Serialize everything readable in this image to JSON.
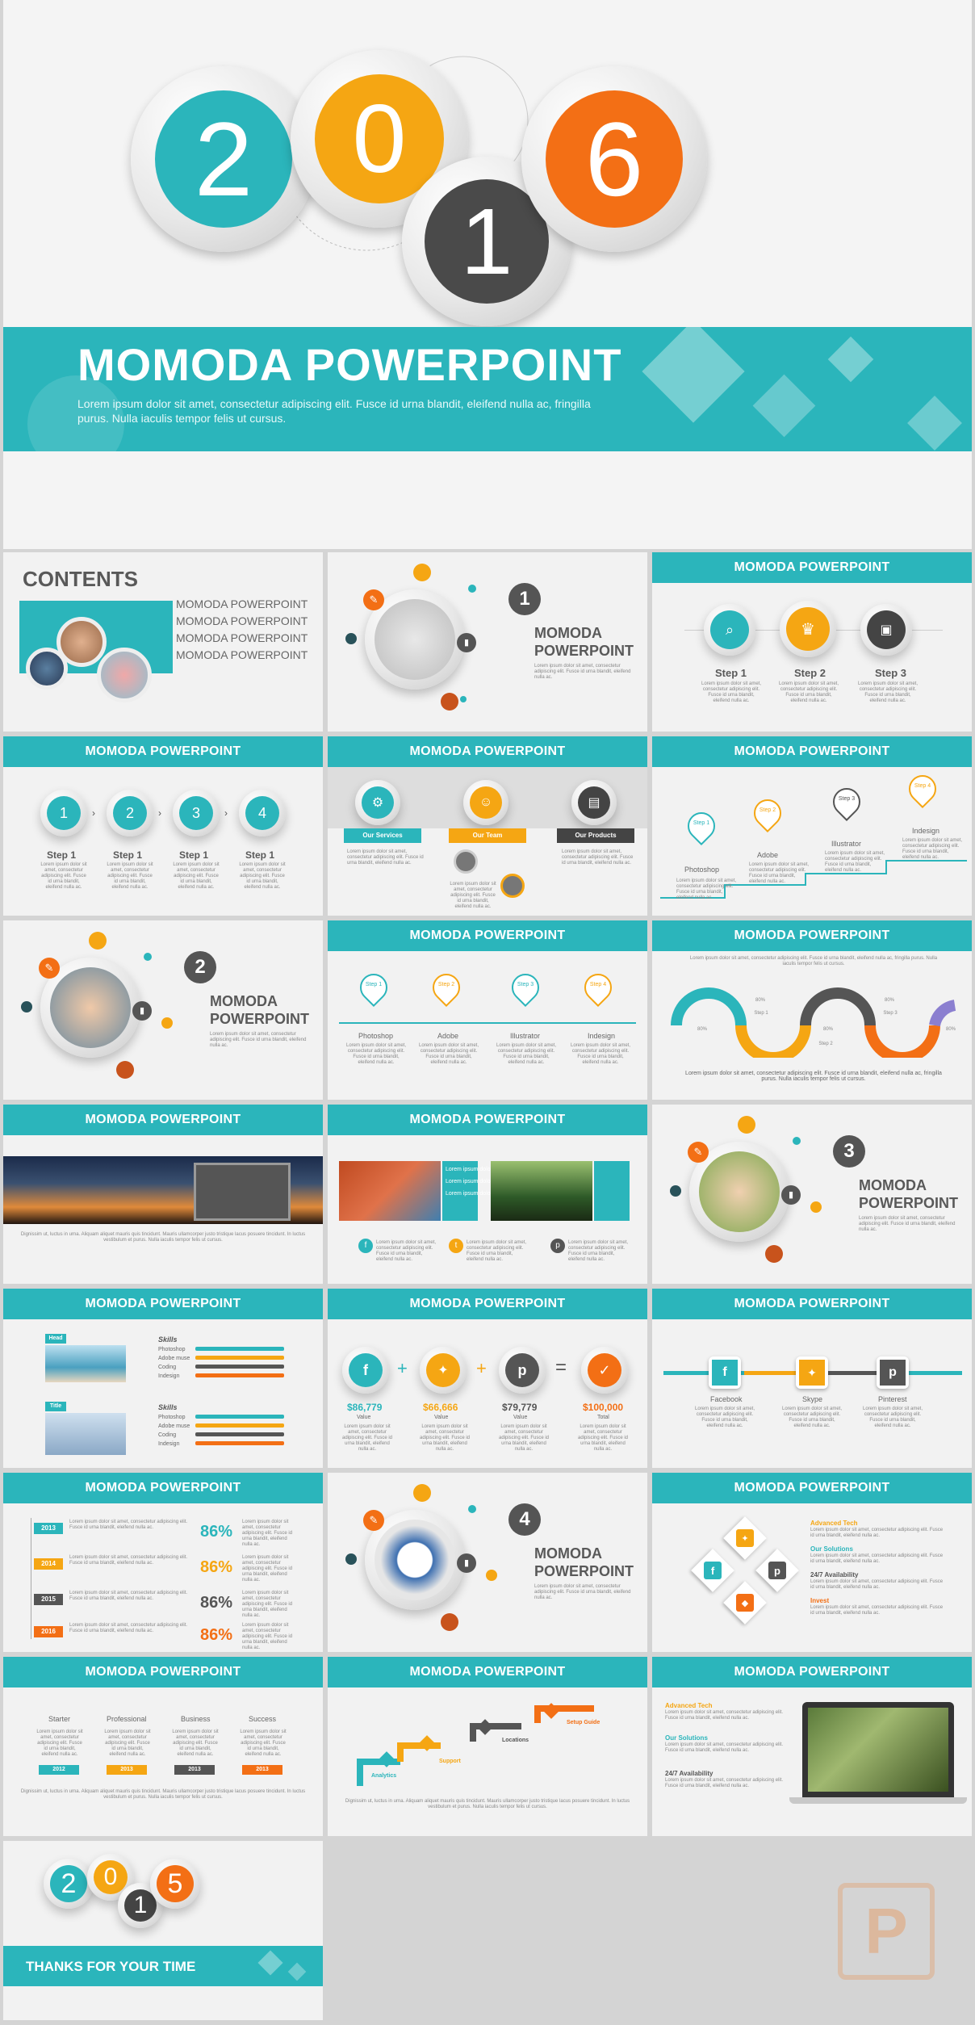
{
  "hero": {
    "d1": "2",
    "d2": "0",
    "d3": "1",
    "d4": "6",
    "title": "MOMODA POWERPOINT",
    "body": "Lorem ipsum dolor sit amet, consectetur adipiscing elit. Fusce id urna blandit, eleifend nulla ac, fringilla purus. Nulla iaculis tempor felis ut cursus."
  },
  "header": "MOMODA POWERPOINT",
  "contents": {
    "title": "CONTENTS",
    "items": [
      "MOMODA POWERPOINT",
      "MOMODA POWERPOINT",
      "MOMODA POWERPOINT",
      "MOMODA POWERPOINT"
    ]
  },
  "sections": [
    {
      "num": "1",
      "l1": "MOMODA",
      "l2": "POWERPOINT"
    },
    {
      "num": "2",
      "l1": "MOMODA",
      "l2": "POWERPOINT"
    },
    {
      "num": "3",
      "l1": "MOMODA",
      "l2": "POWERPOINT"
    },
    {
      "num": "4",
      "l1": "MOMODA",
      "l2": "POWERPOINT"
    }
  ],
  "steps3": [
    "Step 1",
    "Step 2",
    "Step 3"
  ],
  "steps4": {
    "nums": [
      "1",
      "2",
      "3",
      "4"
    ],
    "label": "Step 1"
  },
  "services": [
    "Our Services",
    "Our Team",
    "Our Products"
  ],
  "pins": {
    "steps": [
      "Step 1",
      "Step 2",
      "Step 3",
      "Step 4"
    ],
    "labels": [
      "Photoshop",
      "Adobe",
      "Illustrator",
      "Indesign"
    ],
    "labels2": [
      "Photoshop",
      "Adobe",
      "Illustrator",
      "Indesign"
    ]
  },
  "wave": {
    "text": "Lorem ipsum dolor sit amet, consectetur adipiscing elit. Fusce id urna blandit, eleifend nulla ac, fringilla purus. Nulla iaculis tempor felis ut cursus.",
    "steps": [
      "Step 1",
      "Step 2",
      "Step 3",
      "Step 4"
    ],
    "pct": "80%"
  },
  "photo_caption": "Dignissim ut, luctus in urna. Aliquam aliquet mauris quis tincidunt. Mauris ullamcorper justo tristique lacus posuere tincidunt. In luctus vestibulum et purus. Nulla iaculis tempor felis ut cursus.",
  "bridge": {
    "bullets": [
      "Lorem ipsum dolor sit",
      "Lorem ipsum dolor sit",
      "Lorem ipsum dolor sit"
    ]
  },
  "skills": {
    "tags": [
      "Head",
      "Title"
    ],
    "title": "Skills",
    "rows": [
      "Photoshop",
      "Adobe muse",
      "Coding",
      "Indesign"
    ]
  },
  "eq": {
    "values": [
      "$86,779",
      "$66,666",
      "$79,779",
      "$100,000"
    ],
    "labels": [
      "Value",
      "Value",
      "Value",
      "Total"
    ],
    "icons": [
      "Facebook",
      "Skype",
      "Pinterest",
      "Success"
    ]
  },
  "social": {
    "names": [
      "Facebook",
      "Skype",
      "Pinterest"
    ]
  },
  "years": {
    "list": [
      "2013",
      "2014",
      "2015",
      "2016"
    ],
    "pcts": [
      "86%",
      "86%",
      "86%",
      "86%"
    ]
  },
  "diamond": {
    "heads": [
      "Advanced Tech",
      "Our Solutions",
      "24/7 Availability",
      "Invest"
    ]
  },
  "pricing": {
    "plans": [
      "Starter",
      "Professional",
      "Business",
      "Success"
    ],
    "years": [
      "2012",
      "2013",
      "2013",
      "2013"
    ]
  },
  "stairs": {
    "labels": [
      "Analytics",
      "Support",
      "Locations",
      "Setup Guide"
    ]
  },
  "laptop": {
    "heads": [
      "Advanced Tech",
      "Our Solutions",
      "24/7 Availability"
    ]
  },
  "thanks": {
    "d1": "2",
    "d2": "0",
    "d3": "1",
    "d4": "5",
    "text": "THANKS FOR YOUR TIME"
  },
  "lorem": "Lorem ipsum dolor sit amet, consectetur adipiscing elit. Fusce id urna blandit, eleifend nulla ac."
}
